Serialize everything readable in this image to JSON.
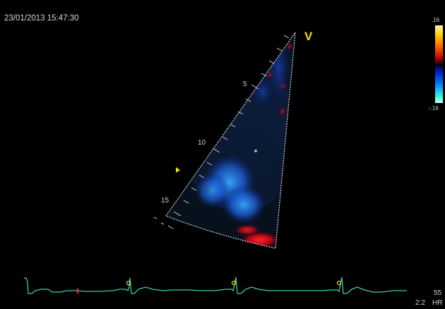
{
  "header": {
    "timestamp": "23/01/2013 15:47:30"
  },
  "color_scale": {
    "top_label": ".16",
    "bottom_label": "-.16"
  },
  "orientation_marker": "V",
  "depth_scale": {
    "labels": [
      "5",
      "10",
      "15"
    ]
  },
  "footer": {
    "hr_value": "55",
    "ratio": "2:2",
    "hr_label": "HR"
  },
  "colors": {
    "ecg_trace": "#3fc9b5",
    "marker_yellow": "#f0e000",
    "doppler_red": "#ff1a1a",
    "doppler_blue": "#1e6bff"
  }
}
